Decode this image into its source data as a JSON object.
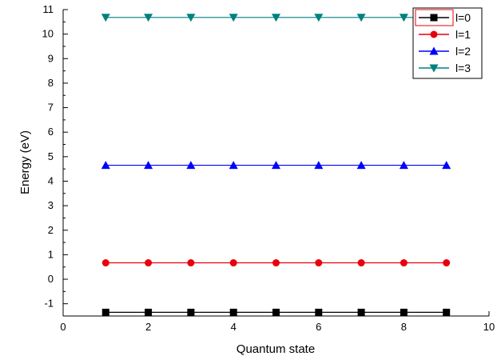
{
  "chart_data": {
    "type": "line",
    "title": "",
    "xlabel": "Quantum state",
    "ylabel": "Energy (eV)",
    "xlim": [
      0,
      10
    ],
    "ylim": [
      -1.5,
      11
    ],
    "x_ticks": [
      "0",
      "2",
      "4",
      "6",
      "8",
      "10"
    ],
    "y_ticks": [
      "-1",
      "0",
      "1",
      "2",
      "3",
      "4",
      "5",
      "6",
      "7",
      "8",
      "9",
      "10",
      "11"
    ],
    "grid": false,
    "legend_position": "top-right",
    "x": [
      1,
      2,
      3,
      4,
      5,
      6,
      7,
      8,
      9
    ],
    "series": [
      {
        "name": "l=0",
        "color": "#000000",
        "marker": "square",
        "values": [
          -1.35,
          -1.35,
          -1.35,
          -1.35,
          -1.35,
          -1.35,
          -1.35,
          -1.35,
          -1.35
        ]
      },
      {
        "name": "l=1",
        "color": "#e8000b",
        "marker": "circle",
        "values": [
          0.67,
          0.67,
          0.67,
          0.67,
          0.67,
          0.67,
          0.67,
          0.67,
          0.67
        ]
      },
      {
        "name": "l=2",
        "color": "#0000ff",
        "marker": "triangle-up",
        "values": [
          4.65,
          4.65,
          4.65,
          4.65,
          4.65,
          4.65,
          4.65,
          4.65,
          4.65
        ]
      },
      {
        "name": "l=3",
        "color": "#008080",
        "marker": "triangle-down",
        "values": [
          10.68,
          10.68,
          10.68,
          10.68,
          10.68,
          10.68,
          10.68,
          10.68,
          10.68
        ]
      }
    ]
  }
}
